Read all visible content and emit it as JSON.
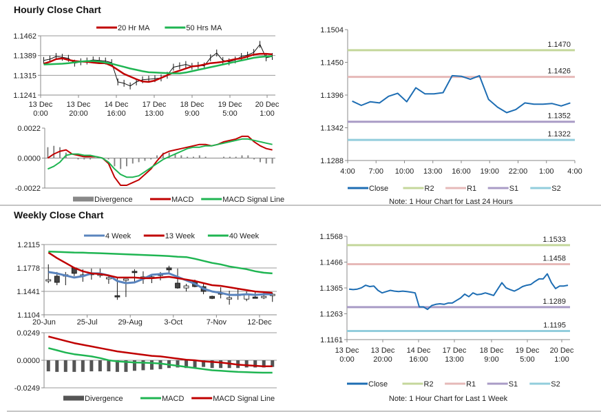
{
  "sections": {
    "hourly_title": "Hourly Close Chart",
    "weekly_title": "Weekly Close Chart"
  },
  "colors": {
    "red": "#c00000",
    "green": "#1fb552",
    "blue_ma": "#5a84be",
    "close": "#1d6db3",
    "R2": "#c4d79b",
    "R1": "#e6b9b8",
    "S1": "#a99bc6",
    "S2": "#92cddc",
    "divergence": "#888888",
    "weekly_divergence": "#555555"
  },
  "chart_data": [
    {
      "id": "hourly_price",
      "type": "line",
      "ylim": [
        1.1241,
        1.1462
      ],
      "yticks": [
        "1.1462",
        "1.1389",
        "1.1315",
        "1.1241"
      ],
      "xticks": [
        "13 Dec|0:00",
        "13 Dec|20:00",
        "14 Dec|16:00",
        "17 Dec|13:00",
        "18 Dec|9:00",
        "19 Dec|5:00",
        "20 Dec|1:00"
      ],
      "price": [
        1.137,
        1.1375,
        1.1385,
        1.1382,
        1.1378,
        1.136,
        1.1365,
        1.1368,
        1.1372,
        1.137,
        1.1368,
        1.1362,
        1.129,
        1.1285,
        1.1275,
        1.129,
        1.1298,
        1.13,
        1.1302,
        1.1305,
        1.1315,
        1.1345,
        1.135,
        1.1355,
        1.1348,
        1.1352,
        1.135,
        1.138,
        1.1398,
        1.137,
        1.1365,
        1.1372,
        1.1385,
        1.139,
        1.14,
        1.143,
        1.138,
        1.1385
      ],
      "series": [
        {
          "name": "20 Hr MA",
          "values": [
            1.1358,
            1.1365,
            1.1375,
            1.1378,
            1.1372,
            1.1368,
            1.1366,
            1.1365,
            1.1362,
            1.136,
            1.136,
            1.135,
            1.1335,
            1.132,
            1.131,
            1.13,
            1.1292,
            1.129,
            1.1295,
            1.1305,
            1.1315,
            1.1325,
            1.1332,
            1.134,
            1.1348,
            1.135,
            1.1355,
            1.136,
            1.1362,
            1.1365,
            1.137,
            1.1375,
            1.1378,
            1.1385,
            1.1392,
            1.1395,
            1.1395,
            1.1393
          ]
        },
        {
          "name": "50 Hrs MA",
          "values": [
            1.1355,
            1.1356,
            1.1357,
            1.1358,
            1.136,
            1.1363,
            1.1366,
            1.1368,
            1.1368,
            1.1366,
            1.1362,
            1.1358,
            1.1352,
            1.1346,
            1.134,
            1.1335,
            1.133,
            1.1326,
            1.1325,
            1.1324,
            1.1323,
            1.1322,
            1.1322,
            1.1325,
            1.133,
            1.1335,
            1.134,
            1.1345,
            1.135,
            1.1355,
            1.136,
            1.1365,
            1.137,
            1.1375,
            1.138,
            1.1383,
            1.1385,
            1.1386
          ]
        }
      ]
    },
    {
      "id": "hourly_macd",
      "type": "bar+line",
      "ylim": [
        -0.0022,
        0.0022
      ],
      "yticks": [
        "0.0022",
        "0.0000",
        "-0.0022"
      ],
      "series": [
        {
          "name": "Divergence",
          "values": [
            0.0008,
            0.0009,
            0.0008,
            0.0004,
            0.0,
            -0.0001,
            -0.0001,
            -0.0001,
            0.0,
            0.0,
            -0.0001,
            -0.0006,
            -0.0008,
            -0.0006,
            -0.0004,
            -0.0003,
            -0.0002,
            -0.0001,
            0.0002,
            0.0004,
            0.0004,
            0.0003,
            0.0002,
            0.0001,
            0.0001,
            0.0002,
            0.0001,
            0.0,
            0.0,
            0.0001,
            0.0001,
            0.0001,
            0.0002,
            0.0002,
            -0.0001,
            -0.0003,
            -0.0004,
            -0.0004
          ]
        },
        {
          "name": "MACD",
          "values": [
            0.0,
            0.0003,
            0.0005,
            0.0006,
            0.0003,
            0.0002,
            0.0001,
            0.0001,
            0.0001,
            0.0,
            -0.0004,
            -0.0014,
            -0.002,
            -0.002,
            -0.0018,
            -0.0016,
            -0.0012,
            -0.0008,
            -0.0002,
            0.0003,
            0.0005,
            0.0006,
            0.0007,
            0.0008,
            0.0009,
            0.001,
            0.001,
            0.0009,
            0.001,
            0.0012,
            0.0013,
            0.0014,
            0.0016,
            0.0016,
            0.0012,
            0.0009,
            0.0007,
            0.0006
          ]
        },
        {
          "name": "MACD Signal Line",
          "values": [
            -0.0008,
            -0.0006,
            -0.0003,
            0.0002,
            0.0003,
            0.0003,
            0.0002,
            0.0002,
            0.0001,
            0.0,
            -0.0003,
            -0.0008,
            -0.0012,
            -0.0014,
            -0.0014,
            -0.0013,
            -0.001,
            -0.0007,
            -0.0004,
            -0.0001,
            0.0001,
            0.0003,
            0.0005,
            0.0007,
            0.0008,
            0.0008,
            0.0009,
            0.0009,
            0.001,
            0.0011,
            0.0012,
            0.0013,
            0.0014,
            0.0014,
            0.0013,
            0.0012,
            0.0011,
            0.001
          ]
        }
      ]
    },
    {
      "id": "hourly_24h",
      "type": "line",
      "ylim": [
        1.1288,
        1.1504
      ],
      "yticks": [
        "1.1504",
        "1.1450",
        "1.1396",
        "1.1342",
        "1.1288"
      ],
      "xticks": [
        "4:00",
        "7:00",
        "10:00",
        "13:00",
        "16:00",
        "19:00",
        "22:00",
        "1:00",
        "4:00"
      ],
      "series": [
        {
          "name": "Close",
          "values": [
            1.1386,
            1.1379,
            1.1385,
            1.1383,
            1.1394,
            1.1399,
            1.1385,
            1.1408,
            1.1398,
            1.1398,
            1.14,
            1.1428,
            1.1427,
            1.1422,
            1.1428,
            1.1389,
            1.1376,
            1.1367,
            1.1372,
            1.1383,
            1.1381,
            1.1381,
            1.1382,
            1.1378,
            1.1383
          ]
        }
      ],
      "levels": [
        {
          "name": "R2",
          "value": 1.147,
          "label": "1.1470"
        },
        {
          "name": "R1",
          "value": 1.1426,
          "label": "1.1426"
        },
        {
          "name": "S1",
          "value": 1.1352,
          "label": "1.1352"
        },
        {
          "name": "S2",
          "value": 1.1322,
          "label": "1.1322"
        }
      ],
      "note": "Note: 1 Hour Chart for Last 24 Hours"
    },
    {
      "id": "weekly_price",
      "type": "candlestick+line",
      "ylim": [
        1.1104,
        1.2115
      ],
      "yticks": [
        "1.2115",
        "1.1778",
        "1.1441",
        "1.1104"
      ],
      "xticks": [
        "20-Jun",
        "25-Jul",
        "29-Aug",
        "3-Oct",
        "7-Nov",
        "12-Dec"
      ],
      "candles": {
        "open": [
          1.159,
          1.166,
          1.167,
          1.178,
          1.167,
          1.169,
          1.168,
          1.162,
          1.138,
          1.16,
          1.173,
          1.164,
          1.164,
          1.168,
          1.178,
          1.156,
          1.149,
          1.158,
          1.151,
          1.137,
          1.142,
          1.133,
          1.138,
          1.133,
          1.136,
          1.136,
          1.138
        ],
        "high": [
          1.183,
          1.172,
          1.172,
          1.179,
          1.176,
          1.177,
          1.177,
          1.168,
          1.163,
          1.162,
          1.176,
          1.173,
          1.169,
          1.172,
          1.181,
          1.177,
          1.155,
          1.161,
          1.156,
          1.138,
          1.15,
          1.145,
          1.147,
          1.144,
          1.144,
          1.144,
          1.142
        ],
        "low": [
          1.156,
          1.153,
          1.153,
          1.166,
          1.158,
          1.161,
          1.164,
          1.155,
          1.132,
          1.136,
          1.156,
          1.155,
          1.156,
          1.16,
          1.17,
          1.148,
          1.144,
          1.15,
          1.14,
          1.133,
          1.134,
          1.125,
          1.132,
          1.13,
          1.134,
          1.133,
          1.129
        ],
        "close": [
          1.161,
          1.157,
          1.168,
          1.17,
          1.168,
          1.17,
          1.169,
          1.164,
          1.137,
          1.162,
          1.172,
          1.165,
          1.165,
          1.169,
          1.175,
          1.149,
          1.152,
          1.151,
          1.144,
          1.134,
          1.141,
          1.135,
          1.14,
          1.139,
          1.135,
          1.137,
          1.14
        ]
      },
      "series": [
        {
          "name": "4 Week",
          "values": [
            1.172,
            1.17,
            1.167,
            1.164,
            1.166,
            1.17,
            1.17,
            1.167,
            1.159,
            1.156,
            1.157,
            1.162,
            1.168,
            1.169,
            1.17,
            1.165,
            1.16,
            1.155,
            1.148,
            1.144,
            1.142,
            1.139,
            1.139,
            1.14,
            1.139,
            1.14,
            1.14
          ]
        },
        {
          "name": "13 Week",
          "values": [
            1.2,
            1.192,
            1.185,
            1.178,
            1.173,
            1.17,
            1.169,
            1.167,
            1.164,
            1.164,
            1.164,
            1.163,
            1.163,
            1.164,
            1.165,
            1.163,
            1.161,
            1.159,
            1.156,
            1.153,
            1.152,
            1.15,
            1.148,
            1.146,
            1.144,
            1.143,
            1.142
          ]
        },
        {
          "name": "40 Week",
          "values": [
            1.2015,
            1.201,
            1.2005,
            1.2,
            1.1998,
            1.1993,
            1.199,
            1.1985,
            1.198,
            1.1975,
            1.197,
            1.1965,
            1.196,
            1.1955,
            1.1948,
            1.194,
            1.1935,
            1.191,
            1.188,
            1.185,
            1.183,
            1.18,
            1.178,
            1.176,
            1.173,
            1.171,
            1.17
          ]
        }
      ]
    },
    {
      "id": "weekly_macd",
      "type": "bar+line",
      "ylim": [
        -0.0249,
        0.0249
      ],
      "yticks": [
        "0.0249",
        "0.0000",
        "-0.0249"
      ],
      "series": [
        {
          "name": "Divergence",
          "values": [
            -0.01,
            -0.0105,
            -0.0105,
            -0.0105,
            -0.0105,
            -0.01,
            -0.01,
            -0.01,
            -0.0105,
            -0.0105,
            -0.0095,
            -0.009,
            -0.0085,
            -0.008,
            -0.007,
            -0.0065,
            -0.007,
            -0.0065,
            -0.006,
            -0.007,
            -0.007,
            -0.007,
            -0.007,
            -0.0065,
            -0.0065,
            -0.0065,
            -0.006
          ]
        },
        {
          "name": "MACD",
          "values": [
            0.011,
            0.009,
            0.007,
            0.0055,
            0.0045,
            0.0035,
            0.002,
            0.0,
            -0.001,
            -0.0015,
            -0.002,
            -0.0022,
            -0.0025,
            -0.003,
            -0.004,
            -0.005,
            -0.006,
            -0.007,
            -0.008,
            -0.009,
            -0.0095,
            -0.01,
            -0.0105,
            -0.0108,
            -0.011,
            -0.0112,
            -0.0112
          ]
        },
        {
          "name": "MACD Signal Line",
          "values": [
            0.0215,
            0.0195,
            0.0175,
            0.0155,
            0.014,
            0.0125,
            0.011,
            0.0095,
            0.008,
            0.007,
            0.006,
            0.005,
            0.004,
            0.0035,
            0.0025,
            0.0015,
            0.0005,
            0.0,
            -0.001,
            -0.0015,
            -0.002,
            -0.003,
            -0.004,
            -0.0045,
            -0.005,
            -0.0055,
            -0.0055
          ]
        }
      ]
    },
    {
      "id": "weekly_hourly",
      "type": "line",
      "ylim": [
        1.1161,
        1.1568
      ],
      "yticks": [
        "1.1568",
        "1.1466",
        "1.1365",
        "1.1263",
        "1.1161"
      ],
      "xticks": [
        "13 Dec|0:00",
        "13 Dec|20:00",
        "14 Dec|16:00",
        "17 Dec|13:00",
        "18 Dec|9:00",
        "19 Dec|5:00",
        "20 Dec|1:00"
      ],
      "series": [
        {
          "name": "Close",
          "values": [
            1.136,
            1.1358,
            1.136,
            1.1365,
            1.1375,
            1.137,
            1.1372,
            1.1355,
            1.1345,
            1.135,
            1.1355,
            1.1352,
            1.135,
            1.1352,
            1.135,
            1.1348,
            1.1345,
            1.129,
            1.129,
            1.128,
            1.1295,
            1.13,
            1.1302,
            1.13,
            1.1305,
            1.1305,
            1.1315,
            1.1325,
            1.134,
            1.133,
            1.1345,
            1.1338,
            1.134,
            1.1345,
            1.134,
            1.1335,
            1.136,
            1.1385,
            1.1365,
            1.1358,
            1.1352,
            1.136,
            1.137,
            1.1375,
            1.1378,
            1.139,
            1.14,
            1.14,
            1.142,
            1.1385,
            1.1362,
            1.1372,
            1.1372,
            1.1375
          ]
        }
      ],
      "levels": [
        {
          "name": "R2",
          "value": 1.1533,
          "label": "1.1533"
        },
        {
          "name": "R1",
          "value": 1.1458,
          "label": "1.1458"
        },
        {
          "name": "S1",
          "value": 1.1289,
          "label": "1.1289"
        },
        {
          "name": "S2",
          "value": 1.1195,
          "label": "1.1195"
        }
      ],
      "note": "Note: 1 Hour Chart for Last 1 Week"
    }
  ]
}
